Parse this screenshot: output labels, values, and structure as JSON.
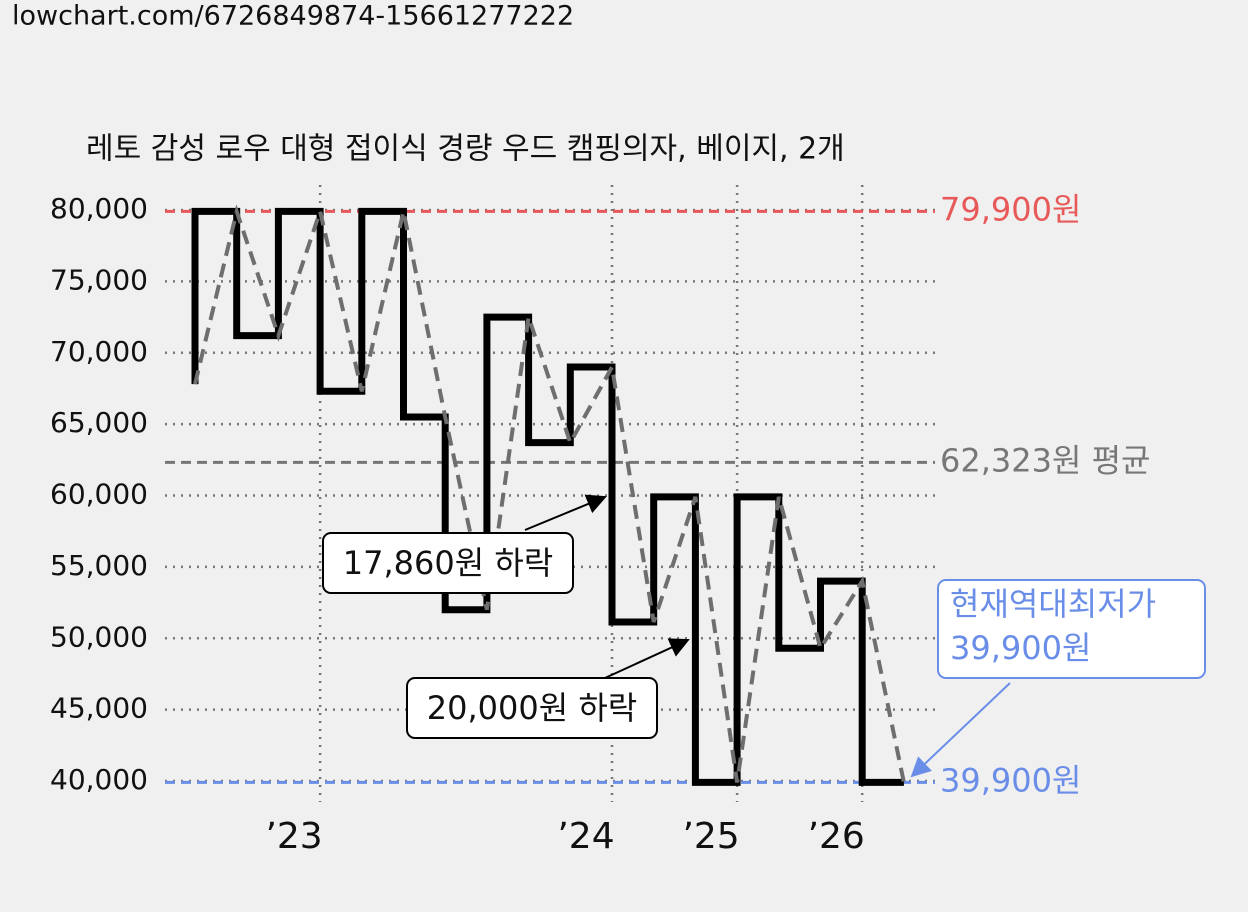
{
  "url": "lowchart.com/6726849874-15661277222",
  "chart_data": {
    "type": "step-line",
    "title": "레토 감성 로우 대형 접이식 경량 우드 캠핑의자, 베이지, 2개",
    "categories": [
      null,
      null,
      null,
      "’23",
      null,
      null,
      null,
      null,
      null,
      null,
      "’24",
      null,
      null,
      "’25",
      null,
      null,
      "’26",
      null
    ],
    "series": [
      {
        "color": "#000000",
        "trend_color": "#6e6e6e",
        "values": [
          67800,
          79900,
          71200,
          79900,
          67300,
          79900,
          65500,
          52000,
          72500,
          63700,
          69000,
          51140,
          59900,
          39900,
          59900,
          49300,
          54000,
          39900
        ]
      }
    ],
    "ylim": [
      40000,
      80000
    ],
    "yticks": [
      {
        "value": 40000,
        "label": "40,000"
      },
      {
        "value": 45000,
        "label": "45,000"
      },
      {
        "value": 50000,
        "label": "50,000"
      },
      {
        "value": 55000,
        "label": "55,000"
      },
      {
        "value": 60000,
        "label": "60,000"
      },
      {
        "value": 65000,
        "label": "65,000"
      },
      {
        "value": 70000,
        "label": "70,000"
      },
      {
        "value": 75000,
        "label": "75,000"
      },
      {
        "value": 80000,
        "label": "80,000"
      }
    ],
    "grid": true,
    "reference_lines": [
      {
        "value": 79900,
        "label": "79,900원",
        "color": "#e85a5a"
      },
      {
        "value": 62323,
        "label": "62,323원 평균",
        "color": "#777777"
      },
      {
        "value": 39900,
        "label": "39,900원",
        "color": "#6a8ee8"
      }
    ],
    "annotations": [
      {
        "text": "17,860원 하락",
        "index": 10
      },
      {
        "text": "20,000원 하락",
        "index": 12
      },
      {
        "lines": [
          "현재역대최저가",
          "39,900원"
        ],
        "index": 17,
        "color": "#6a8ee8"
      }
    ]
  }
}
